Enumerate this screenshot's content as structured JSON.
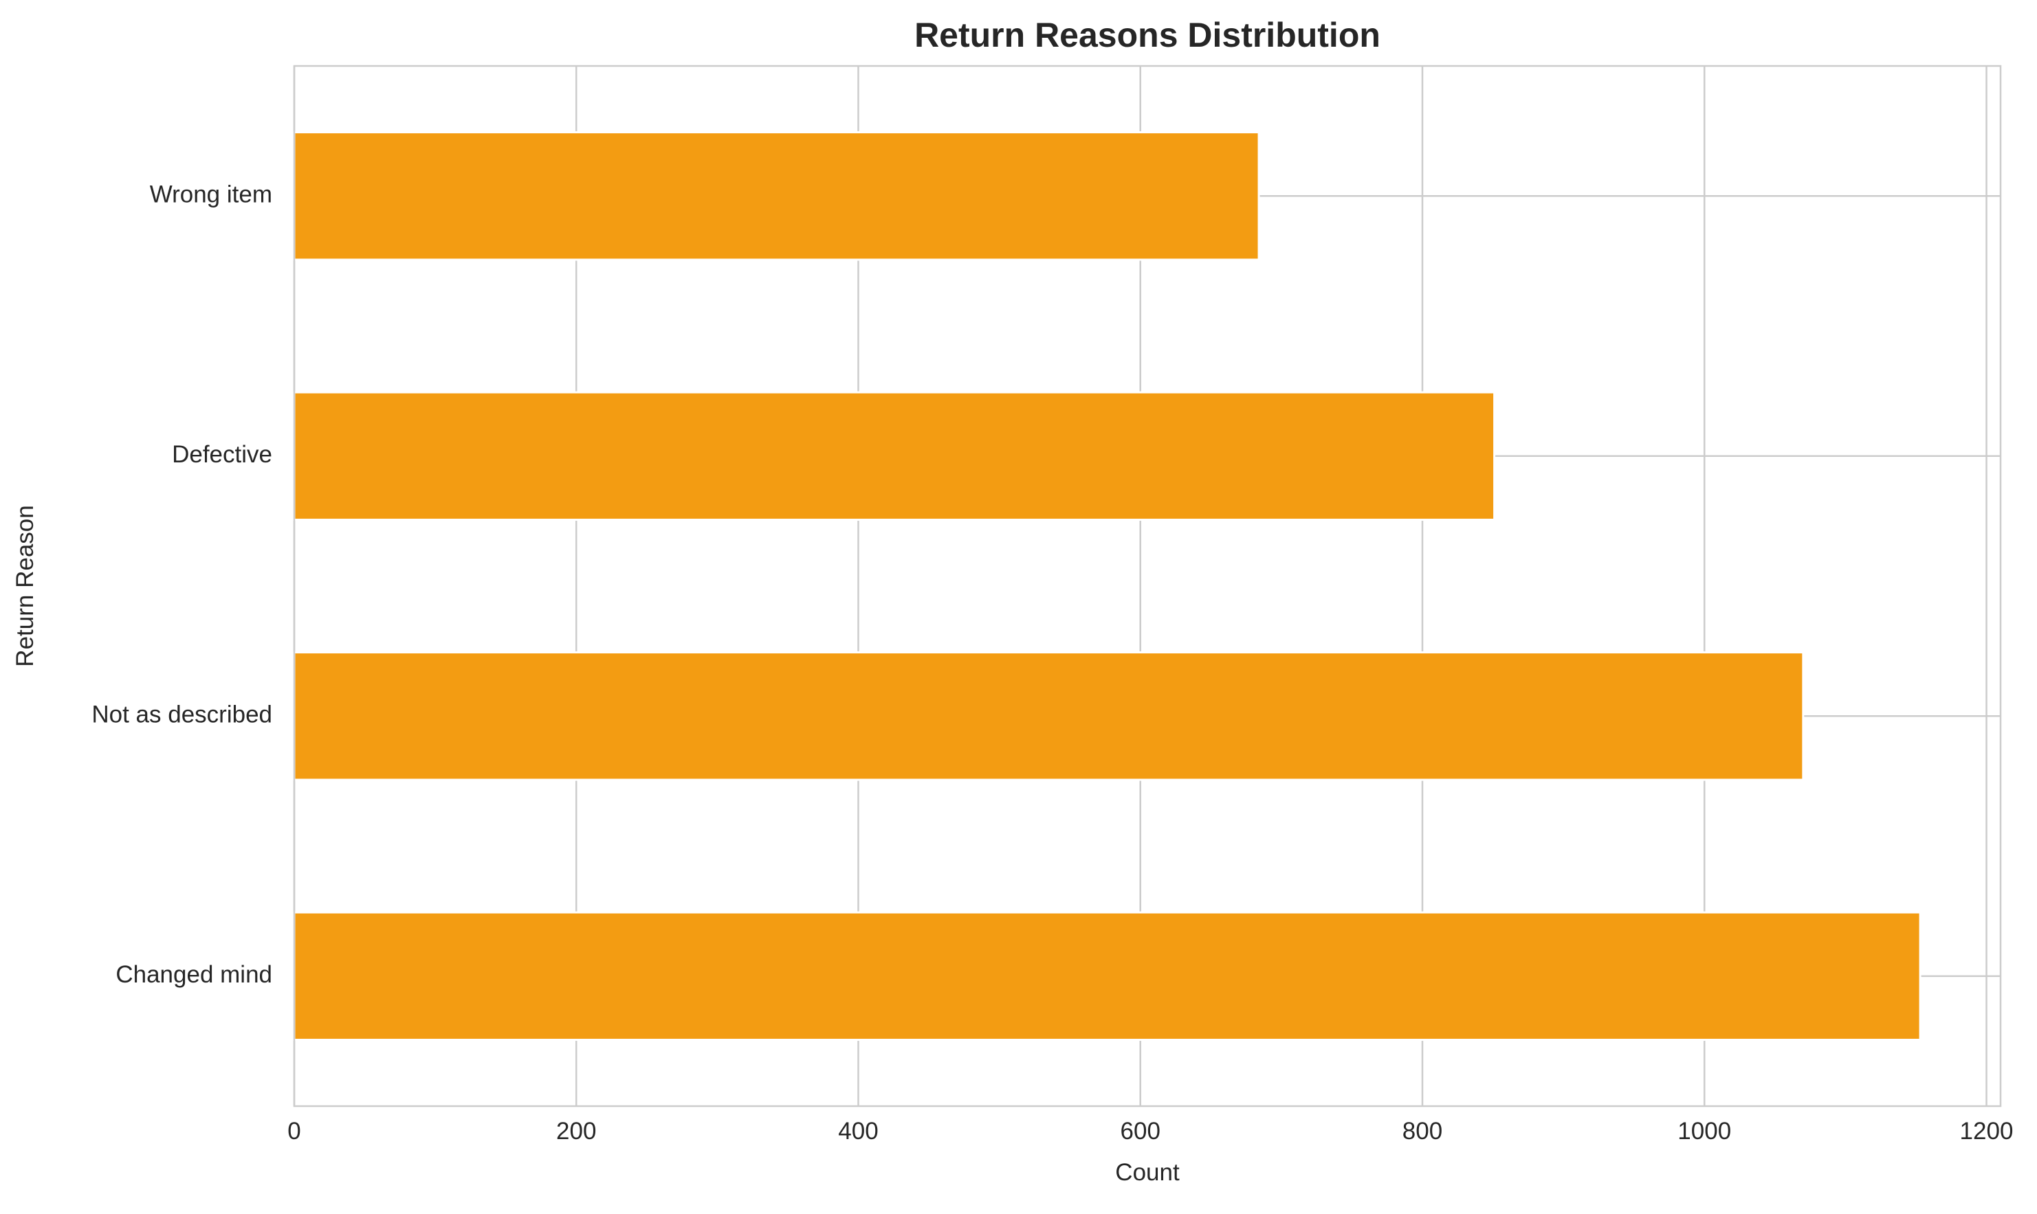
{
  "chart_data": {
    "type": "bar",
    "orientation": "horizontal",
    "title": "Return Reasons Distribution",
    "xlabel": "Count",
    "ylabel": "Return Reason",
    "categories": [
      "Changed mind",
      "Not as described",
      "Defective",
      "Wrong item"
    ],
    "values": [
      1153,
      1070,
      851,
      684
    ],
    "xlim": [
      0,
      1210
    ],
    "xticks": [
      0,
      200,
      400,
      600,
      800,
      1000,
      1200
    ],
    "grid": true,
    "bar_color": "#f39c12"
  }
}
